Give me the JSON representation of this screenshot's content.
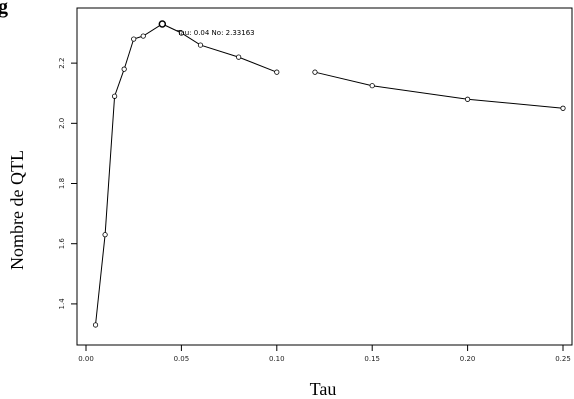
{
  "chart_data": {
    "type": "line",
    "title_fragment": "g",
    "xlabel": "Tau",
    "ylabel": "Nombre de QTL",
    "xlim": [
      0.0,
      0.25
    ],
    "ylim": [
      1.3,
      2.33
    ],
    "xticks": [
      {
        "value": 0.0,
        "label": "0.00"
      },
      {
        "value": 0.05,
        "label": "0.05"
      },
      {
        "value": 0.1,
        "label": "0.10"
      },
      {
        "value": 0.15,
        "label": "0.15"
      },
      {
        "value": 0.2,
        "label": "0.20"
      },
      {
        "value": 0.25,
        "label": "0.25"
      }
    ],
    "yticks": [
      {
        "value": 1.4,
        "label": "1.4"
      },
      {
        "value": 1.6,
        "label": "1.6"
      },
      {
        "value": 1.8,
        "label": "1.8"
      },
      {
        "value": 2.0,
        "label": "2.0"
      },
      {
        "value": 2.2,
        "label": "2.2"
      }
    ],
    "segments": [
      {
        "points": [
          {
            "x": 0.005,
            "y": 1.33
          },
          {
            "x": 0.01,
            "y": 1.63
          },
          {
            "x": 0.015,
            "y": 2.09
          },
          {
            "x": 0.02,
            "y": 2.18
          },
          {
            "x": 0.025,
            "y": 2.28
          },
          {
            "x": 0.03,
            "y": 2.29
          },
          {
            "x": 0.04,
            "y": 2.33
          },
          {
            "x": 0.05,
            "y": 2.3
          },
          {
            "x": 0.06,
            "y": 2.26
          },
          {
            "x": 0.08,
            "y": 2.22
          },
          {
            "x": 0.1,
            "y": 2.17
          }
        ]
      },
      {
        "points": [
          {
            "x": 0.12,
            "y": 2.17
          },
          {
            "x": 0.15,
            "y": 2.125
          },
          {
            "x": 0.2,
            "y": 2.08
          },
          {
            "x": 0.25,
            "y": 2.05
          }
        ]
      }
    ],
    "highlight": {
      "x": 0.04,
      "y": 2.33
    },
    "annotation": "Tau: 0.04 No: 2.33163",
    "grid": false
  }
}
